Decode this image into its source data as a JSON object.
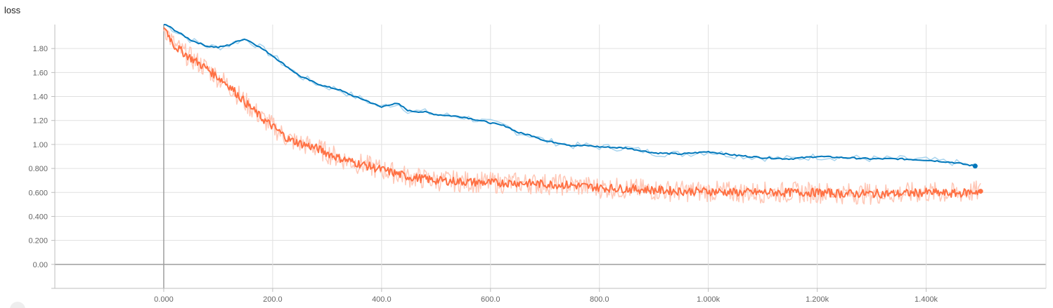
{
  "title": "loss",
  "chart_data": {
    "type": "line",
    "title": "loss",
    "xlabel": "",
    "ylabel": "",
    "xlim": [
      -200,
      1620
    ],
    "ylim": [
      -0.2,
      2.0
    ],
    "x_ticks": [
      0,
      200,
      400,
      600,
      800,
      1000,
      1200,
      1400
    ],
    "x_tick_labels": [
      "0.000",
      "200.0",
      "400.0",
      "600.0",
      "800.0",
      "1.000k",
      "1.200k",
      "1.400k"
    ],
    "y_ticks": [
      0,
      0.2,
      0.4,
      0.6,
      0.8,
      1.0,
      1.2,
      1.4,
      1.6,
      1.8
    ],
    "y_tick_labels": [
      "0.00",
      "0.200",
      "0.400",
      "0.600",
      "0.800",
      "1.00",
      "1.20",
      "1.40",
      "1.60",
      "1.80"
    ],
    "grid": true,
    "series": [
      {
        "color": "#0077bb",
        "raw_color": "#a8d4ee",
        "x": [
          0,
          50,
          80,
          100,
          120,
          140,
          150,
          170,
          200,
          220,
          250,
          280,
          300,
          320,
          350,
          370,
          400,
          410,
          430,
          450,
          480,
          500,
          550,
          580,
          600,
          630,
          650,
          680,
          700,
          730,
          750,
          780,
          800,
          850,
          900,
          950,
          1000,
          1050,
          1100,
          1150,
          1200,
          1250,
          1300,
          1350,
          1400,
          1450,
          1490
        ],
        "y": [
          2.01,
          1.87,
          1.82,
          1.81,
          1.83,
          1.87,
          1.88,
          1.83,
          1.74,
          1.67,
          1.57,
          1.51,
          1.48,
          1.46,
          1.4,
          1.37,
          1.31,
          1.33,
          1.34,
          1.28,
          1.27,
          1.25,
          1.23,
          1.2,
          1.18,
          1.15,
          1.1,
          1.07,
          1.03,
          1.01,
          0.99,
          0.99,
          0.98,
          0.97,
          0.93,
          0.92,
          0.94,
          0.91,
          0.89,
          0.88,
          0.9,
          0.89,
          0.88,
          0.88,
          0.87,
          0.85,
          0.82
        ]
      },
      {
        "color": "#ff7043",
        "raw_color": "#ffc7b6",
        "x": [
          0,
          20,
          50,
          80,
          100,
          120,
          150,
          180,
          200,
          230,
          250,
          280,
          300,
          320,
          350,
          400,
          450,
          500,
          550,
          600,
          650,
          700,
          750,
          800,
          850,
          900,
          950,
          1000,
          1050,
          1100,
          1150,
          1200,
          1250,
          1300,
          1350,
          1400,
          1450,
          1500
        ],
        "y": [
          1.99,
          1.82,
          1.72,
          1.63,
          1.56,
          1.49,
          1.35,
          1.22,
          1.15,
          1.04,
          1.01,
          0.97,
          0.93,
          0.89,
          0.85,
          0.79,
          0.73,
          0.7,
          0.69,
          0.68,
          0.68,
          0.67,
          0.66,
          0.64,
          0.63,
          0.62,
          0.61,
          0.61,
          0.6,
          0.6,
          0.6,
          0.6,
          0.59,
          0.59,
          0.59,
          0.6,
          0.59,
          0.61
        ]
      }
    ]
  }
}
